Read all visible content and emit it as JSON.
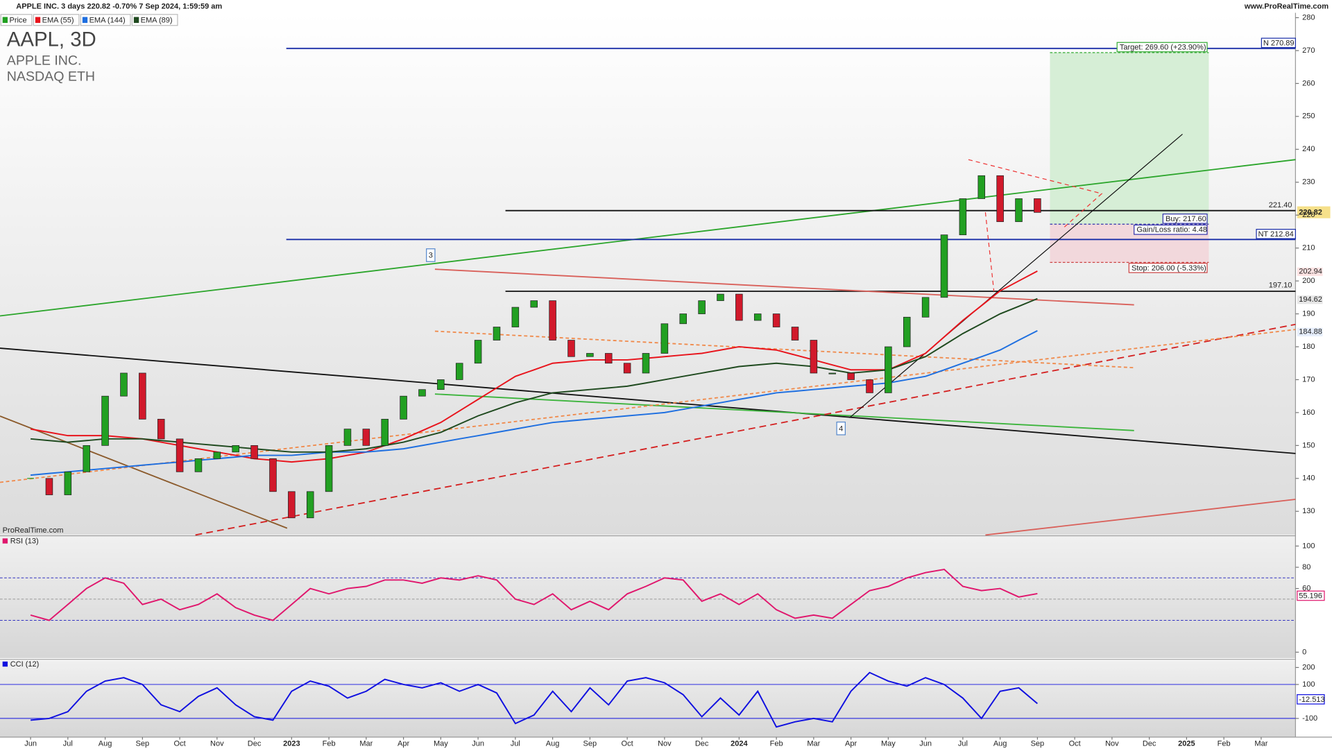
{
  "chart_data": [
    {
      "type": "candlestick",
      "title": "APPLE INC. 3 days 220.82 -0.70% 7 Sep 2024, 1:59:59 am",
      "source": "www.ProRealTime.com",
      "symbol": "AAPL, 3D",
      "name": "APPLE INC.",
      "exchange": "NASDAQ ETH",
      "watermark": "ProRealTime.com",
      "annotations": [
        "221.40",
        "197.10",
        "Buy: 217.60",
        "Gain/Loss ratio: 4.48",
        "Stop: 206.00 (-5.33%)",
        "Target: 269.60 (+23.90%)",
        "3",
        "4"
      ],
      "price_tags": [
        "N 270.89",
        "220.82",
        "NT 212.84",
        "202.94",
        "194.62",
        "184.88"
      ],
      "x": [
        0,
        0.5,
        1,
        1.5,
        2,
        2.5,
        3,
        3.5,
        4,
        4.5,
        5,
        5.5,
        6,
        6.5,
        7,
        7.5,
        8,
        8.5,
        9,
        9.5,
        10,
        10.5,
        11,
        11.5,
        12,
        12.5,
        13,
        13.5,
        14,
        14.5,
        15,
        15.5,
        16,
        16.5,
        17,
        17.5,
        18,
        18.5,
        19,
        19.5,
        20,
        20.5,
        21,
        21.5,
        22,
        22.5,
        23,
        23.5,
        24,
        24.5,
        25,
        25.5,
        26,
        26.5,
        27
      ],
      "xlim": [
        -0.82,
        33.92
      ],
      "xticks": [
        {
          "value": 0,
          "label": "Jun"
        },
        {
          "value": 1,
          "label": "Jul"
        },
        {
          "value": 2,
          "label": "Aug"
        },
        {
          "value": 3,
          "label": "Sep"
        },
        {
          "value": 4,
          "label": "Oct"
        },
        {
          "value": 5,
          "label": "Nov"
        },
        {
          "value": 6,
          "label": "Dec"
        },
        {
          "value": 7,
          "label": "2023"
        },
        {
          "value": 8,
          "label": "Feb"
        },
        {
          "value": 9,
          "label": "Mar"
        },
        {
          "value": 10,
          "label": "Apr"
        },
        {
          "value": 11,
          "label": "May"
        },
        {
          "value": 12,
          "label": "Jun"
        },
        {
          "value": 13,
          "label": "Jul"
        },
        {
          "value": 14,
          "label": "Aug"
        },
        {
          "value": 15,
          "label": "Sep"
        },
        {
          "value": 16,
          "label": "Oct"
        },
        {
          "value": 17,
          "label": "Nov"
        },
        {
          "value": 18,
          "label": "Dec"
        },
        {
          "value": 19,
          "label": "2024"
        },
        {
          "value": 20,
          "label": "Feb"
        },
        {
          "value": 21,
          "label": "Mar"
        },
        {
          "value": 22,
          "label": "Apr"
        },
        {
          "value": 23,
          "label": "May"
        },
        {
          "value": 24,
          "label": "Jun"
        },
        {
          "value": 25,
          "label": "Jul"
        },
        {
          "value": 26,
          "label": "Aug"
        },
        {
          "value": 27,
          "label": "Sep"
        },
        {
          "value": 28,
          "label": "Oct"
        },
        {
          "value": 29,
          "label": "Nov"
        },
        {
          "value": 30,
          "label": "Dec"
        },
        {
          "value": 31,
          "label": "2025"
        },
        {
          "value": 32,
          "label": "Feb"
        },
        {
          "value": 33,
          "label": "Mar"
        }
      ],
      "ylim": [
        122.8,
        281.5
      ],
      "yticks": [
        130,
        140,
        150,
        160,
        170,
        180,
        190,
        200,
        210,
        220,
        230,
        240,
        250,
        260,
        270,
        280
      ],
      "series": [
        {
          "name": "Price",
          "color": "#22a022",
          "down_color": "#d1192b",
          "values": [
            140,
            135,
            142,
            150,
            165,
            172,
            158,
            152,
            142,
            146,
            148,
            150,
            146,
            136,
            128,
            136,
            150,
            155,
            150,
            158,
            165,
            167,
            170,
            175,
            182,
            186,
            192,
            194,
            182,
            177,
            178,
            175,
            172,
            178,
            187,
            190,
            194,
            196,
            188,
            190,
            186,
            182,
            172,
            172,
            170,
            166,
            180,
            189,
            195,
            214,
            225,
            232,
            218,
            225,
            220.82
          ]
        },
        {
          "name": "EMA (55)",
          "color": "#e8141c",
          "values": [
            155,
            154,
            153,
            153,
            153,
            152.5,
            152,
            151,
            150,
            149,
            148,
            147,
            146,
            145.5,
            145,
            145.5,
            146,
            147,
            148,
            150,
            152,
            154.5,
            157,
            160.5,
            164,
            167.5,
            171,
            173,
            175,
            175.5,
            176,
            176,
            176,
            176.5,
            177,
            177.5,
            178,
            179,
            180,
            179.5,
            179,
            177.5,
            176,
            174.5,
            173,
            173,
            173,
            175.5,
            178,
            183,
            188,
            192.5,
            197,
            200,
            203
          ]
        },
        {
          "name": "EMA (144)",
          "color": "#1e6fe0",
          "values": [
            141,
            141.5,
            142,
            142.5,
            143,
            143.5,
            144,
            144.5,
            145,
            145.5,
            146,
            146.5,
            147,
            147,
            147,
            147.5,
            148,
            148,
            148,
            148.5,
            149,
            150,
            151,
            152,
            153,
            154,
            155,
            156,
            157,
            157.5,
            158,
            158.5,
            159,
            159.5,
            160,
            161,
            162,
            163,
            164,
            165,
            166,
            166.5,
            167,
            167.5,
            168,
            168.5,
            169,
            170,
            171,
            173,
            175,
            177,
            179,
            182,
            184.88
          ]
        },
        {
          "name": "EMA (89)",
          "color": "#1f4a1f",
          "values": [
            152,
            151.5,
            151,
            151.5,
            152,
            152,
            152,
            151.5,
            151,
            150.5,
            150,
            149.5,
            149,
            148.5,
            148,
            148,
            148,
            148.5,
            149,
            150,
            151,
            152.5,
            154,
            156.5,
            159,
            161,
            163,
            164.5,
            166,
            166.5,
            167,
            167.5,
            168,
            169,
            170,
            171,
            172,
            173,
            174,
            174.5,
            175,
            174.5,
            174,
            173,
            172,
            172.5,
            173,
            175,
            177,
            180.5,
            184,
            187,
            190,
            192.3,
            194.62
          ]
        }
      ]
    },
    {
      "type": "line",
      "title": "RSI (13)",
      "last_label": "55.196",
      "ylim": [
        -5.6,
        108.8
      ],
      "yticks": [
        0,
        60,
        80,
        100
      ],
      "levels": [
        30,
        50,
        70
      ],
      "series": [
        {
          "name": "RSI (13)",
          "color": "#e0176d",
          "values": [
            35,
            30,
            45,
            60,
            70,
            65,
            45,
            50,
            40,
            45,
            55,
            42,
            35,
            30,
            45,
            60,
            55,
            60,
            62,
            68,
            68,
            65,
            70,
            68,
            72,
            68,
            50,
            45,
            55,
            40,
            48,
            40,
            55,
            62,
            70,
            68,
            48,
            55,
            45,
            55,
            40,
            32,
            35,
            32,
            45,
            58,
            62,
            70,
            75,
            78,
            62,
            58,
            60,
            52,
            55.196
          ]
        }
      ]
    },
    {
      "type": "line",
      "title": "CCI (12)",
      "last_label": "-12.513",
      "ylim": [
        -210,
        240
      ],
      "yticks": [
        -100,
        100,
        200
      ],
      "levels": [
        -100,
        100
      ],
      "series": [
        {
          "name": "CCI (12)",
          "color": "#1010e0",
          "values": [
            -110,
            -100,
            -60,
            60,
            120,
            140,
            100,
            -20,
            -60,
            30,
            80,
            -20,
            -90,
            -110,
            60,
            120,
            90,
            20,
            60,
            130,
            100,
            80,
            110,
            60,
            100,
            50,
            -130,
            -80,
            60,
            -60,
            80,
            -20,
            120,
            140,
            110,
            40,
            -90,
            20,
            -80,
            60,
            -150,
            -120,
            -100,
            -120,
            60,
            170,
            120,
            90,
            140,
            100,
            20,
            -100,
            60,
            80,
            -12.513
          ]
        }
      ]
    }
  ]
}
